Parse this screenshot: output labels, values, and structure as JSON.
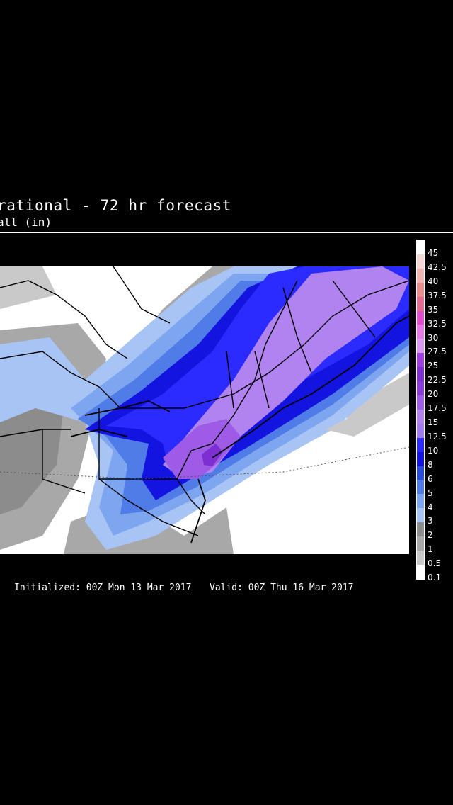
{
  "header": {
    "title": "rational - 72 hr forecast",
    "subtitle": "all (in)"
  },
  "legend": {
    "labels": [
      "45",
      "42.5",
      "40",
      "37.5",
      "35",
      "32.5",
      "30",
      "27.5",
      "25",
      "22.5",
      "20",
      "17.5",
      "15",
      "12.5",
      "10",
      "8",
      "6",
      "5",
      "4",
      "3",
      "2",
      "1",
      "0.5",
      "0.1"
    ],
    "colors": [
      "#ffffff",
      "#f7d6d6",
      "#f0b4b4",
      "#e98d8d",
      "#e36b8f",
      "#e04ecf",
      "#e87ae8",
      "#d99bf2",
      "#a040e0",
      "#7d2fd0",
      "#8a3bd8",
      "#9d5be6",
      "#b083f0",
      "#a17cf0",
      "#2b2bff",
      "#1414e0",
      "#2a4cd8",
      "#4f7ce6",
      "#7ea6f0",
      "#a8c4f4",
      "#8c8c8c",
      "#a8a8a8",
      "#c9c9c9",
      "#ffffff"
    ]
  },
  "footer": {
    "initialized": "Initialized: 00Z Mon 13 Mar 2017",
    "valid": "Valid: 00Z Thu 16 Mar 2017"
  },
  "map": {
    "variable": "snowfall",
    "units": "in",
    "forecast_hour": 72
  }
}
